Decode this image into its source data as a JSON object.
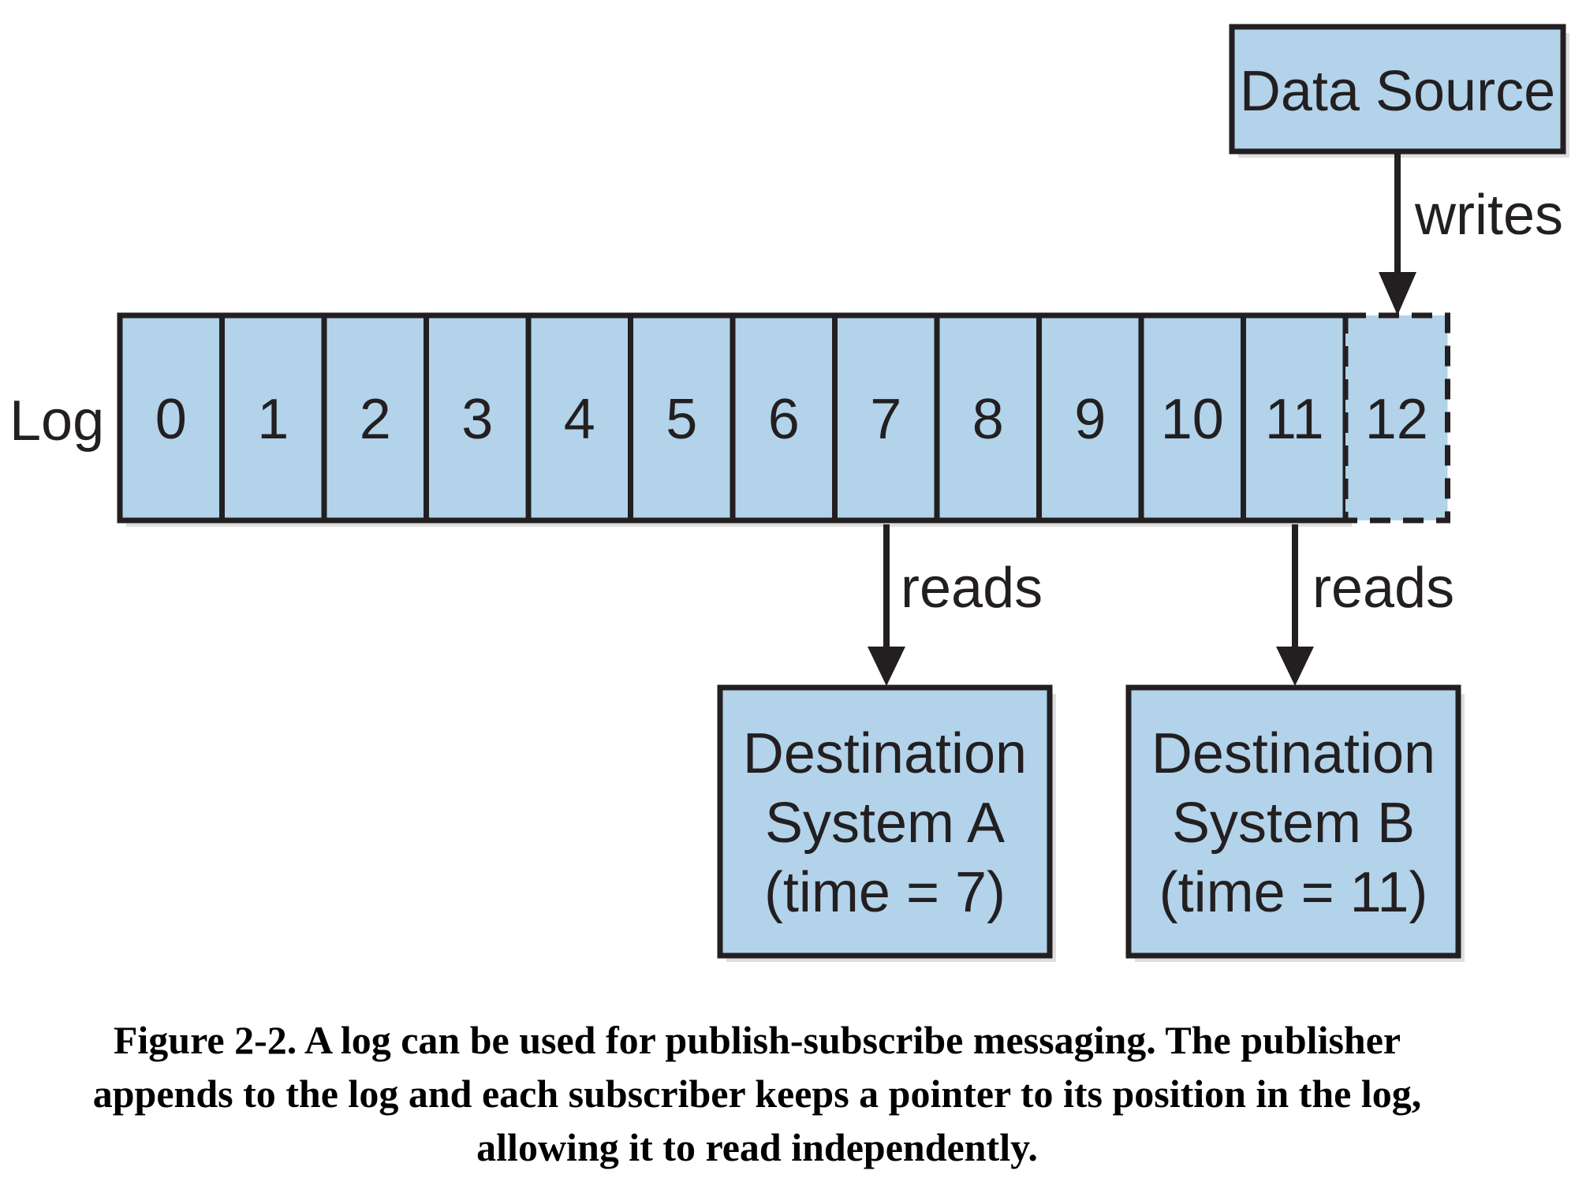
{
  "diagram": {
    "log_label": "Log",
    "cells": [
      "0",
      "1",
      "2",
      "3",
      "4",
      "5",
      "6",
      "7",
      "8",
      "9",
      "10",
      "11",
      "12"
    ],
    "pending_cell": "12",
    "source": {
      "label": "Data Source",
      "edge_label": "writes"
    },
    "destinations": [
      {
        "lines": [
          "Destination",
          "System A",
          "(time = 7)"
        ],
        "edge_label": "reads",
        "reads_from": "7"
      },
      {
        "lines": [
          "Destination",
          "System B",
          "(time = 11)"
        ],
        "edge_label": "reads",
        "reads_from": "11"
      }
    ],
    "colors": {
      "box_fill": "#b2d3ea",
      "stroke": "#231f20",
      "shadow": "#c8c8c8"
    }
  },
  "caption": "Figure 2-2. A log can be used for publish-subscribe messaging. The publisher appends to the log and each subscriber keeps a pointer to its position in the log, allowing it to read independently."
}
